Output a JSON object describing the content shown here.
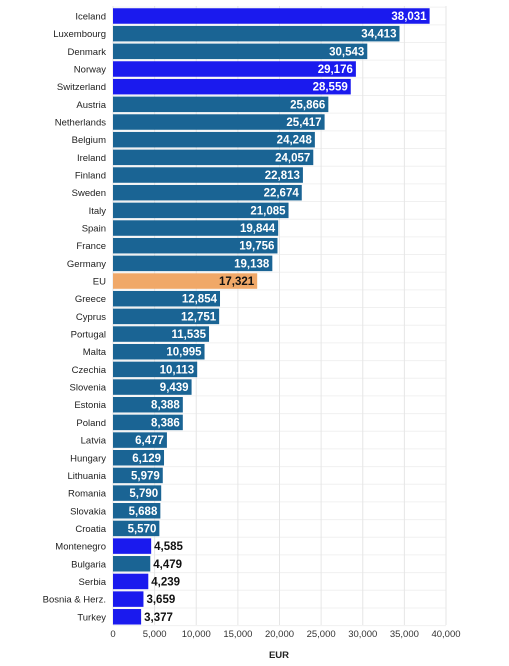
{
  "chart_data": {
    "type": "bar",
    "orientation": "horizontal",
    "title": "",
    "xlabel": "EUR",
    "ylabel": "",
    "xlim": [
      0,
      40000
    ],
    "xticks": [
      0,
      5000,
      10000,
      15000,
      20000,
      25000,
      30000,
      35000,
      40000
    ],
    "xtick_labels": [
      "0",
      "5,000",
      "10,000",
      "15,000",
      "20,000",
      "25,000",
      "30,000",
      "35,000",
      "40,000"
    ],
    "grid": "vertical",
    "colors": {
      "eu_member": "#1a6494",
      "non_eu": "#1a1aee",
      "eu_average": "#f0a868"
    },
    "categories": [
      "Iceland",
      "Luxembourg",
      "Denmark",
      "Norway",
      "Switzerland",
      "Austria",
      "Netherlands",
      "Belgium",
      "Ireland",
      "Finland",
      "Sweden",
      "Italy",
      "Spain",
      "France",
      "Germany",
      "EU",
      "Greece",
      "Cyprus",
      "Portugal",
      "Malta",
      "Czechia",
      "Slovenia",
      "Estonia",
      "Poland",
      "Latvia",
      "Hungary",
      "Lithuania",
      "Romania",
      "Slovakia",
      "Croatia",
      "Montenegro",
      "Bulgaria",
      "Serbia",
      "Bosnia & Herz.",
      "Turkey"
    ],
    "values": [
      38031,
      34413,
      30543,
      29176,
      28559,
      25866,
      25417,
      24248,
      24057,
      22813,
      22674,
      21085,
      19844,
      19756,
      19138,
      17321,
      12854,
      12751,
      11535,
      10995,
      10113,
      9439,
      8388,
      8386,
      6477,
      6129,
      5979,
      5790,
      5688,
      5570,
      4585,
      4479,
      4239,
      3659,
      3377
    ],
    "value_labels": [
      "38,031",
      "34,413",
      "30,543",
      "29,176",
      "28,559",
      "25,866",
      "25,417",
      "24,248",
      "24,057",
      "22,813",
      "22,674",
      "21,085",
      "19,844",
      "19,756",
      "19,138",
      "17,321",
      "12,854",
      "12,751",
      "11,535",
      "10,995",
      "10,113",
      "9,439",
      "8,388",
      "8,386",
      "6,477",
      "6,129",
      "5,979",
      "5,790",
      "5,688",
      "5,570",
      "4,585",
      "4,479",
      "4,239",
      "3,659",
      "3,377"
    ],
    "bar_group": [
      "non_eu",
      "eu_member",
      "eu_member",
      "non_eu",
      "non_eu",
      "eu_member",
      "eu_member",
      "eu_member",
      "eu_member",
      "eu_member",
      "eu_member",
      "eu_member",
      "eu_member",
      "eu_member",
      "eu_member",
      "eu_average",
      "eu_member",
      "eu_member",
      "eu_member",
      "eu_member",
      "eu_member",
      "eu_member",
      "eu_member",
      "eu_member",
      "eu_member",
      "eu_member",
      "eu_member",
      "eu_member",
      "eu_member",
      "eu_member",
      "non_eu",
      "eu_member",
      "non_eu",
      "non_eu",
      "non_eu"
    ]
  }
}
